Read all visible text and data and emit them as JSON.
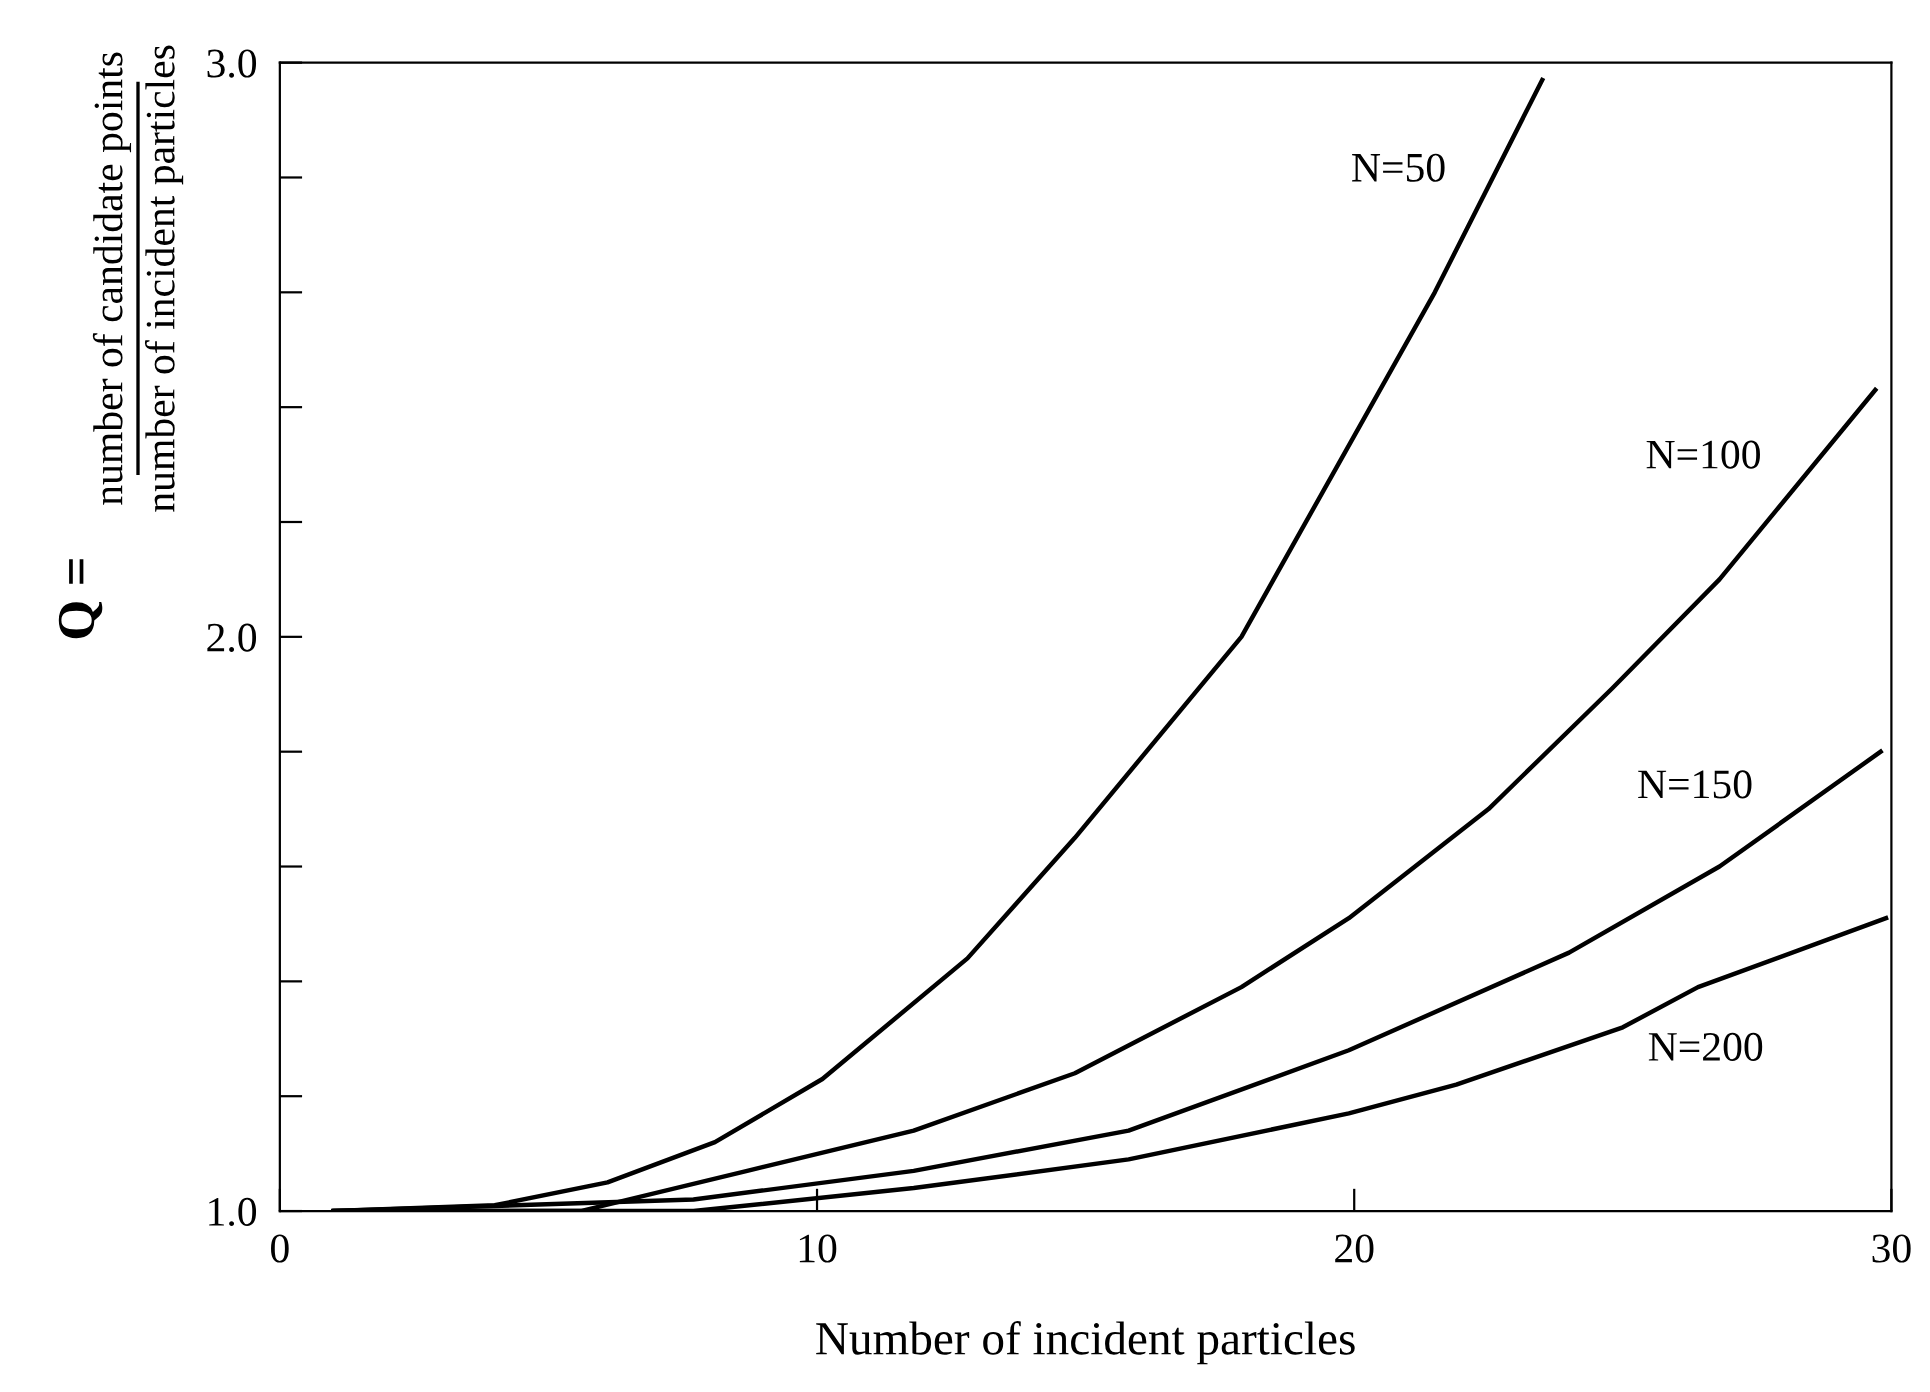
{
  "chart_data": {
    "type": "line",
    "xlabel": "Number of incident particles",
    "ylabel": "Q =",
    "annotations": [
      "number of candidate points",
      "number of incident particles"
    ],
    "xlim": [
      0,
      30
    ],
    "ylim": [
      1,
      3
    ],
    "xticks": [
      0,
      10,
      20,
      30
    ],
    "yticks": [
      {
        "value": 1,
        "label": "1.0"
      },
      {
        "value": 1.2,
        "label": null
      },
      {
        "value": 1.4,
        "label": null
      },
      {
        "value": 1.6,
        "label": null
      },
      {
        "value": 1.8,
        "label": null
      },
      {
        "value": 2,
        "label": "2.0"
      },
      {
        "value": 2.2,
        "label": null
      },
      {
        "value": 2.4,
        "label": null
      },
      {
        "value": 2.6,
        "label": null
      },
      {
        "value": 2.8,
        "label": null
      },
      {
        "value": 3,
        "label": "3.0"
      }
    ],
    "grid": false,
    "legend": false,
    "marker": "none",
    "line_style": "solid",
    "series": [
      {
        "name": "N=50",
        "color": "#000000",
        "x": [
          1,
          4,
          6.1,
          8.1,
          10.1,
          12.8,
          14.8,
          17.9,
          19.7,
          21.5,
          23.5
        ],
        "values": [
          1.0,
          1.01,
          1.05,
          1.12,
          1.23,
          1.44,
          1.65,
          2.0,
          2.3,
          2.6,
          2.97
        ]
      },
      {
        "name": "N=100",
        "color": "#000000",
        "x": [
          1,
          5.6,
          8.7,
          11.8,
          14.8,
          17.9,
          19.9,
          22.5,
          24.8,
          26.8,
          29.7
        ],
        "values": [
          1.0,
          1.0,
          1.07,
          1.14,
          1.24,
          1.39,
          1.51,
          1.7,
          1.91,
          2.1,
          2.43
        ]
      },
      {
        "name": "N=150",
        "color": "#000000",
        "x": [
          1,
          7.7,
          11.8,
          15.8,
          19.9,
          24.0,
          26.8,
          29.8
        ],
        "values": [
          1.0,
          1.02,
          1.07,
          1.14,
          1.28,
          1.45,
          1.6,
          1.8
        ]
      },
      {
        "name": "N=200",
        "color": "#000000",
        "x": [
          1,
          7.7,
          11.8,
          15.8,
          19.9,
          21.9,
          25,
          26.4,
          29.9
        ],
        "values": [
          1.0,
          1.0,
          1.04,
          1.09,
          1.17,
          1.22,
          1.32,
          1.39,
          1.51
        ]
      }
    ]
  }
}
